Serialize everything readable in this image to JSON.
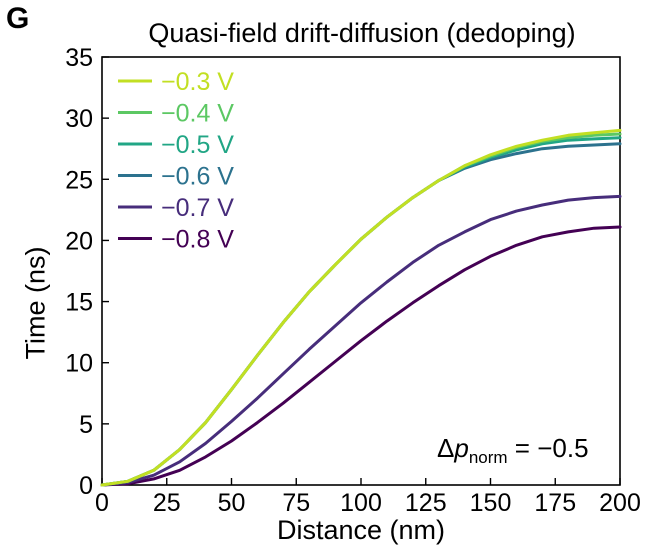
{
  "panel_label": "G",
  "chart_data": {
    "type": "line",
    "title": "Quasi-field drift-diffusion (dedoping)",
    "xlabel": "Distance (nm)",
    "ylabel": "Time (ns)",
    "xlim": [
      0,
      200
    ],
    "ylim": [
      0,
      35
    ],
    "xticks": [
      0,
      25,
      50,
      75,
      100,
      125,
      150,
      175,
      200
    ],
    "yticks": [
      0,
      5,
      10,
      15,
      20,
      25,
      30,
      35
    ],
    "grid": false,
    "legend_position": "top-left",
    "annotation": {
      "symbol": "Δ",
      "var": "p",
      "sub": "norm",
      "rest": " = −0.5"
    },
    "x": [
      0,
      10,
      20,
      30,
      40,
      50,
      60,
      70,
      80,
      90,
      100,
      110,
      120,
      130,
      140,
      150,
      160,
      170,
      180,
      190,
      200
    ],
    "series": [
      {
        "name": "−0.3 V",
        "color": "#c2df23",
        "values": [
          0,
          0.3,
          1.2,
          2.9,
          5.1,
          7.8,
          10.6,
          13.3,
          15.8,
          18.0,
          20.1,
          21.9,
          23.5,
          24.9,
          26.1,
          27.0,
          27.7,
          28.2,
          28.6,
          28.8,
          29.0
        ]
      },
      {
        "name": "−0.4 V",
        "color": "#5cc863",
        "values": [
          0,
          0.3,
          1.2,
          2.9,
          5.1,
          7.8,
          10.6,
          13.3,
          15.8,
          18.0,
          20.1,
          21.9,
          23.5,
          24.9,
          26.1,
          26.9,
          27.6,
          28.1,
          28.4,
          28.6,
          28.7
        ]
      },
      {
        "name": "−0.5 V",
        "color": "#21a685",
        "values": [
          0,
          0.3,
          1.2,
          2.9,
          5.1,
          7.8,
          10.6,
          13.3,
          15.8,
          18.0,
          20.1,
          21.9,
          23.5,
          24.9,
          26.0,
          26.8,
          27.4,
          27.9,
          28.2,
          28.3,
          28.4
        ]
      },
      {
        "name": "−0.6 V",
        "color": "#2c728e",
        "values": [
          0,
          0.3,
          1.2,
          2.9,
          5.1,
          7.8,
          10.6,
          13.3,
          15.8,
          18.0,
          20.1,
          21.9,
          23.5,
          24.9,
          25.9,
          26.6,
          27.1,
          27.5,
          27.7,
          27.8,
          27.9
        ]
      },
      {
        "name": "−0.7 V",
        "color": "#472d7b",
        "values": [
          0,
          0.2,
          0.8,
          1.9,
          3.4,
          5.2,
          7.1,
          9.1,
          11.1,
          13.0,
          14.9,
          16.6,
          18.2,
          19.6,
          20.7,
          21.7,
          22.4,
          22.9,
          23.3,
          23.5,
          23.6
        ]
      },
      {
        "name": "−0.8 V",
        "color": "#440154",
        "values": [
          0,
          0.1,
          0.5,
          1.2,
          2.3,
          3.6,
          5.1,
          6.7,
          8.4,
          10.1,
          11.8,
          13.4,
          14.9,
          16.3,
          17.6,
          18.7,
          19.6,
          20.3,
          20.7,
          21.0,
          21.1
        ]
      }
    ]
  }
}
